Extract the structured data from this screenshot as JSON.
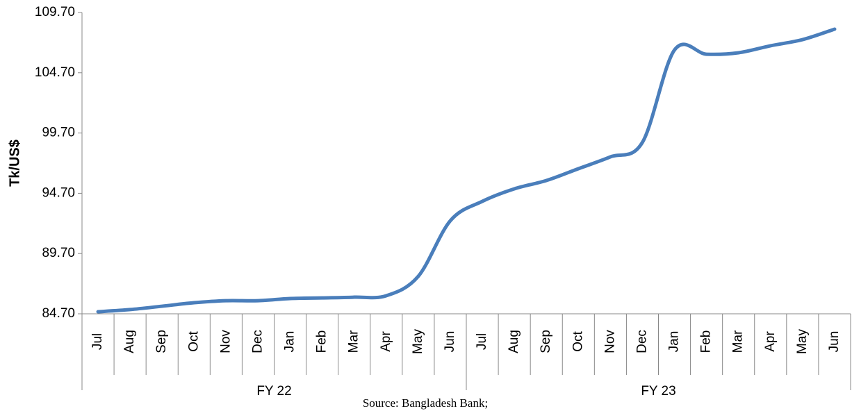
{
  "chart_data": {
    "type": "line",
    "y_label": "Tk/US$",
    "categories": [
      "Jul",
      "Aug",
      "Sep",
      "Oct",
      "Nov",
      "Dec",
      "Jan",
      "Feb",
      "Mar",
      "Apr",
      "May",
      "Jun",
      "Jul",
      "Aug",
      "Sep",
      "Oct",
      "Nov",
      "Dec",
      "Jan",
      "Feb",
      "Mar",
      "Apr",
      "May",
      "Jun"
    ],
    "groups": [
      "FY 22",
      "FY 23"
    ],
    "series": [
      {
        "name": "Tk/US$",
        "color": "#4a7ebb",
        "values": [
          84.87,
          85.05,
          85.33,
          85.62,
          85.79,
          85.79,
          85.97,
          86.02,
          86.08,
          86.2,
          87.81,
          92.42,
          94.03,
          95.07,
          95.76,
          96.74,
          97.72,
          98.93,
          106.59,
          106.24,
          106.36,
          106.94,
          107.45,
          108.32
        ]
      }
    ],
    "ylim": [
      84.7,
      109.7
    ],
    "yticks": [
      {
        "value": 84.7,
        "label": "84.70"
      },
      {
        "value": 89.7,
        "label": "89.70"
      },
      {
        "value": 94.7,
        "label": "94.70"
      },
      {
        "value": 99.7,
        "label": "99.70"
      },
      {
        "value": 104.7,
        "label": "104.70"
      },
      {
        "value": 109.7,
        "label": "109.70"
      }
    ],
    "source": "Source: Bangladesh Bank;"
  }
}
